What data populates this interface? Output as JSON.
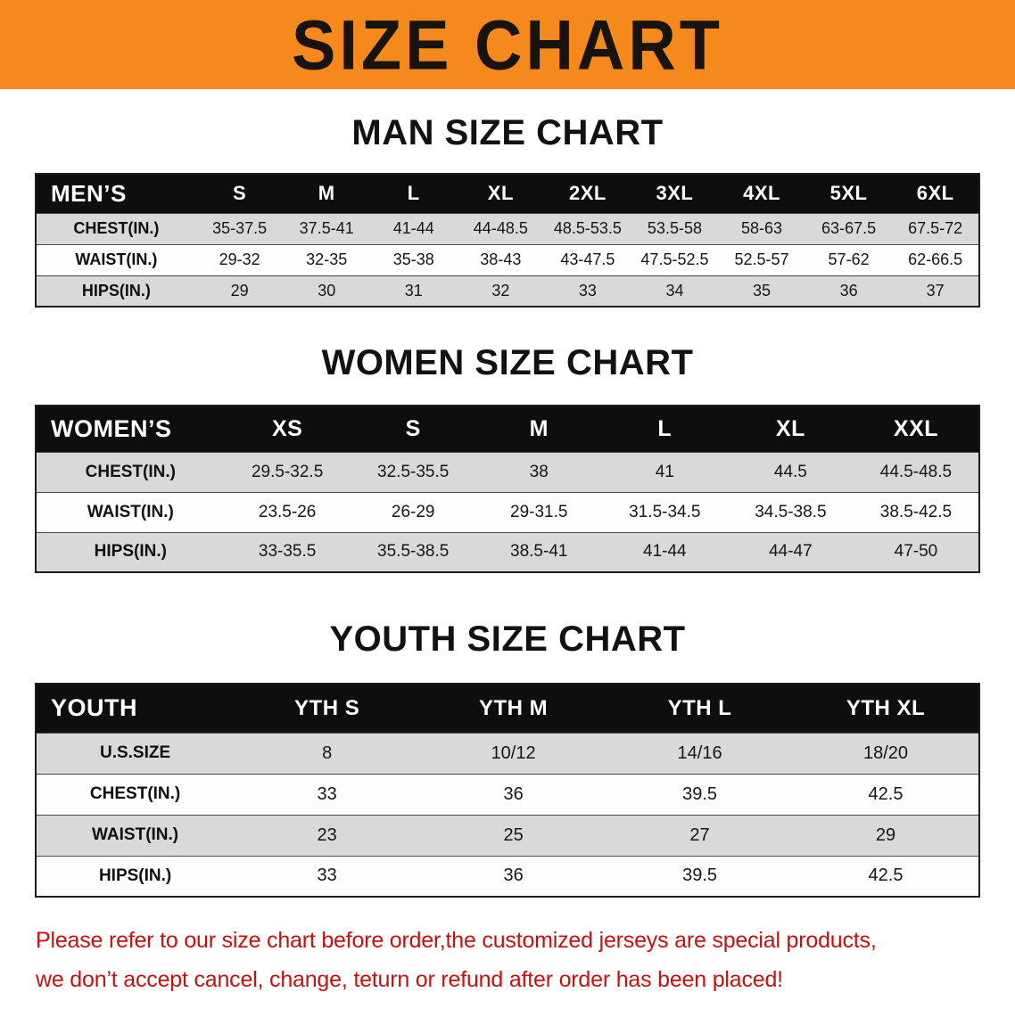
{
  "banner": {
    "title": "SIZE CHART",
    "bg_color": "#F6891E",
    "text_color": "#17130E"
  },
  "sections": [
    {
      "heading": "MAN SIZE CHART",
      "table": {
        "title": "MEN’S",
        "header": [
          "MEN’S",
          "S",
          "M",
          "L",
          "XL",
          "2XL",
          "3XL",
          "4XL",
          "5XL",
          "6XL"
        ],
        "rows": [
          [
            "CHEST(IN.)",
            "35-37.5",
            "37.5-41",
            "41-44",
            "44-48.5",
            "48.5-53.5",
            "53.5-58",
            "58-63",
            "63-67.5",
            "67.5-72"
          ],
          [
            "WAIST(IN.)",
            "29-32",
            "32-35",
            "35-38",
            "38-43",
            "43-47.5",
            "47.5-52.5",
            "52.5-57",
            "57-62",
            "62-66.5"
          ],
          [
            "HIPS(IN.)",
            "29",
            "30",
            "31",
            "32",
            "33",
            "34",
            "35",
            "36",
            "37"
          ]
        ]
      }
    },
    {
      "heading": "WOMEN SIZE CHART",
      "table": {
        "title": "WOMEN’S",
        "header": [
          "WOMEN’S",
          "XS",
          "S",
          "M",
          "L",
          "XL",
          "XXL"
        ],
        "rows": [
          [
            "CHEST(IN.)",
            "29.5-32.5",
            "32.5-35.5",
            "38",
            "41",
            "44.5",
            "44.5-48.5"
          ],
          [
            "WAIST(IN.)",
            "23.5-26",
            "26-29",
            "29-31.5",
            "31.5-34.5",
            "34.5-38.5",
            "38.5-42.5"
          ],
          [
            "HIPS(IN.)",
            "33-35.5",
            "35.5-38.5",
            "38.5-41",
            "41-44",
            "44-47",
            "47-50"
          ]
        ]
      }
    },
    {
      "heading": "YOUTH SIZE CHART",
      "table": {
        "title": "YOUTH",
        "header": [
          "YOUTH",
          "YTH S",
          "YTH M",
          "YTH L",
          "YTH XL"
        ],
        "rows": [
          [
            "U.S.SIZE",
            "8",
            "10/12",
            "14/16",
            "18/20"
          ],
          [
            "CHEST(IN.)",
            "33",
            "36",
            "39.5",
            "42.5"
          ],
          [
            "WAIST(IN.)",
            "23",
            "25",
            "27",
            "29"
          ],
          [
            "HIPS(IN.)",
            "33",
            "36",
            "39.5",
            "42.5"
          ]
        ]
      }
    }
  ],
  "table_colors": {
    "header_bg": "#0E0E0E",
    "header_text": "#FFFFFF",
    "row_alt_bg": "#D9D9D9",
    "row_bg": "#FDFDFD"
  },
  "disclaimer": {
    "color": "#C31212",
    "line1": "Please refer to our size chart before order,the customized jerseys are special products,",
    "line2": "we don’t accept cancel, change, teturn or refund after order has been placed!"
  }
}
